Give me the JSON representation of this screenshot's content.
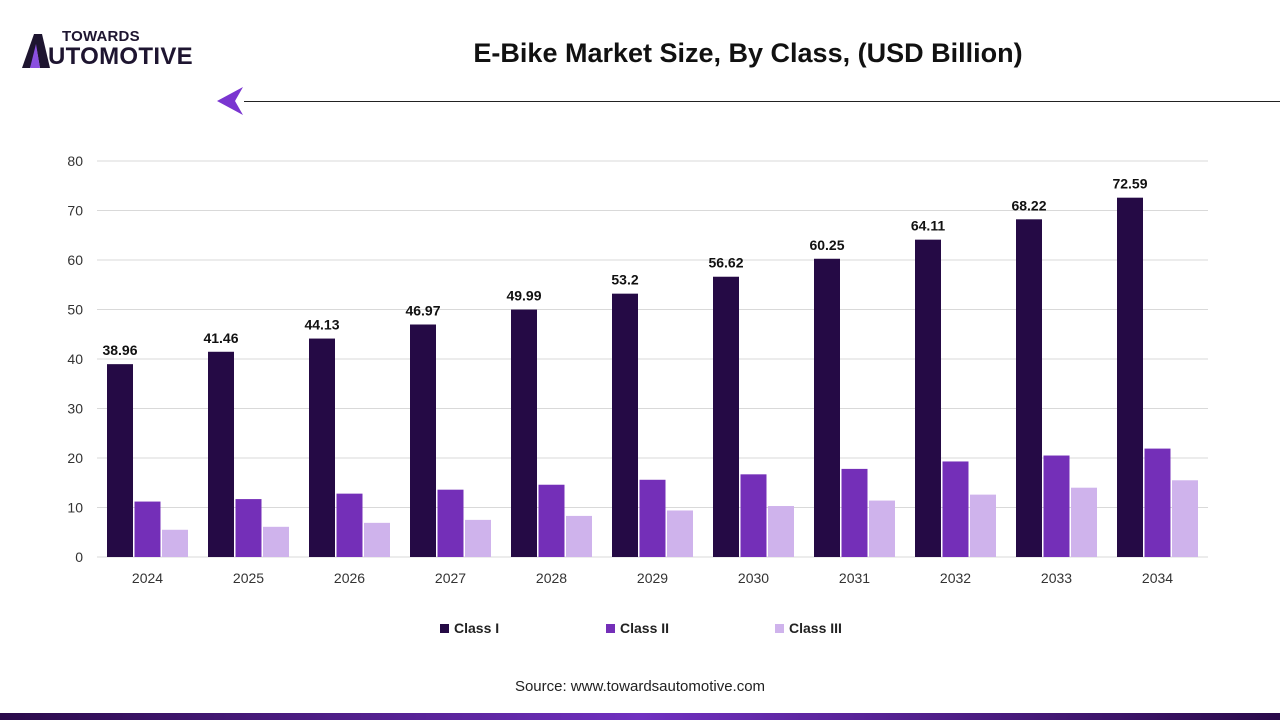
{
  "logo": {
    "top": "TOWARDS",
    "bottom": "UTOMOTIVE",
    "full": "TOWARDS AUTOMOTIVE"
  },
  "colors": {
    "class1": "#250a45",
    "class2": "#742fb8",
    "class3": "#cfb3ec",
    "grid": "#d9d9d9"
  },
  "chart_data": {
    "type": "bar",
    "title": "E-Bike Market Size, By Class, (USD Billion)",
    "xlabel": "",
    "ylabel": "",
    "ylim": [
      0,
      80
    ],
    "yticks": [
      0,
      10,
      20,
      30,
      40,
      50,
      60,
      70,
      80
    ],
    "grid": true,
    "legend_position": "bottom",
    "categories": [
      "2024",
      "2025",
      "2026",
      "2027",
      "2028",
      "2029",
      "2030",
      "2031",
      "2032",
      "2033",
      "2034"
    ],
    "series": [
      {
        "name": "Class I",
        "values": [
          38.96,
          41.46,
          44.13,
          46.97,
          49.99,
          53.2,
          56.62,
          60.25,
          64.11,
          68.22,
          72.59
        ],
        "labels": [
          "38.96",
          "41.46",
          "44.13",
          "46.97",
          "49.99",
          "53.2",
          "56.62",
          "60.25",
          "64.11",
          "68.22",
          "72.59"
        ]
      },
      {
        "name": "Class II",
        "values": [
          11.2,
          11.7,
          12.8,
          13.6,
          14.6,
          15.6,
          16.7,
          17.8,
          19.3,
          20.5,
          21.9
        ]
      },
      {
        "name": "Class III",
        "values": [
          5.5,
          6.1,
          6.9,
          7.5,
          8.3,
          9.4,
          10.3,
          11.4,
          12.6,
          14.0,
          15.5
        ]
      }
    ]
  },
  "source": "Source: www.towardsautomotive.com"
}
